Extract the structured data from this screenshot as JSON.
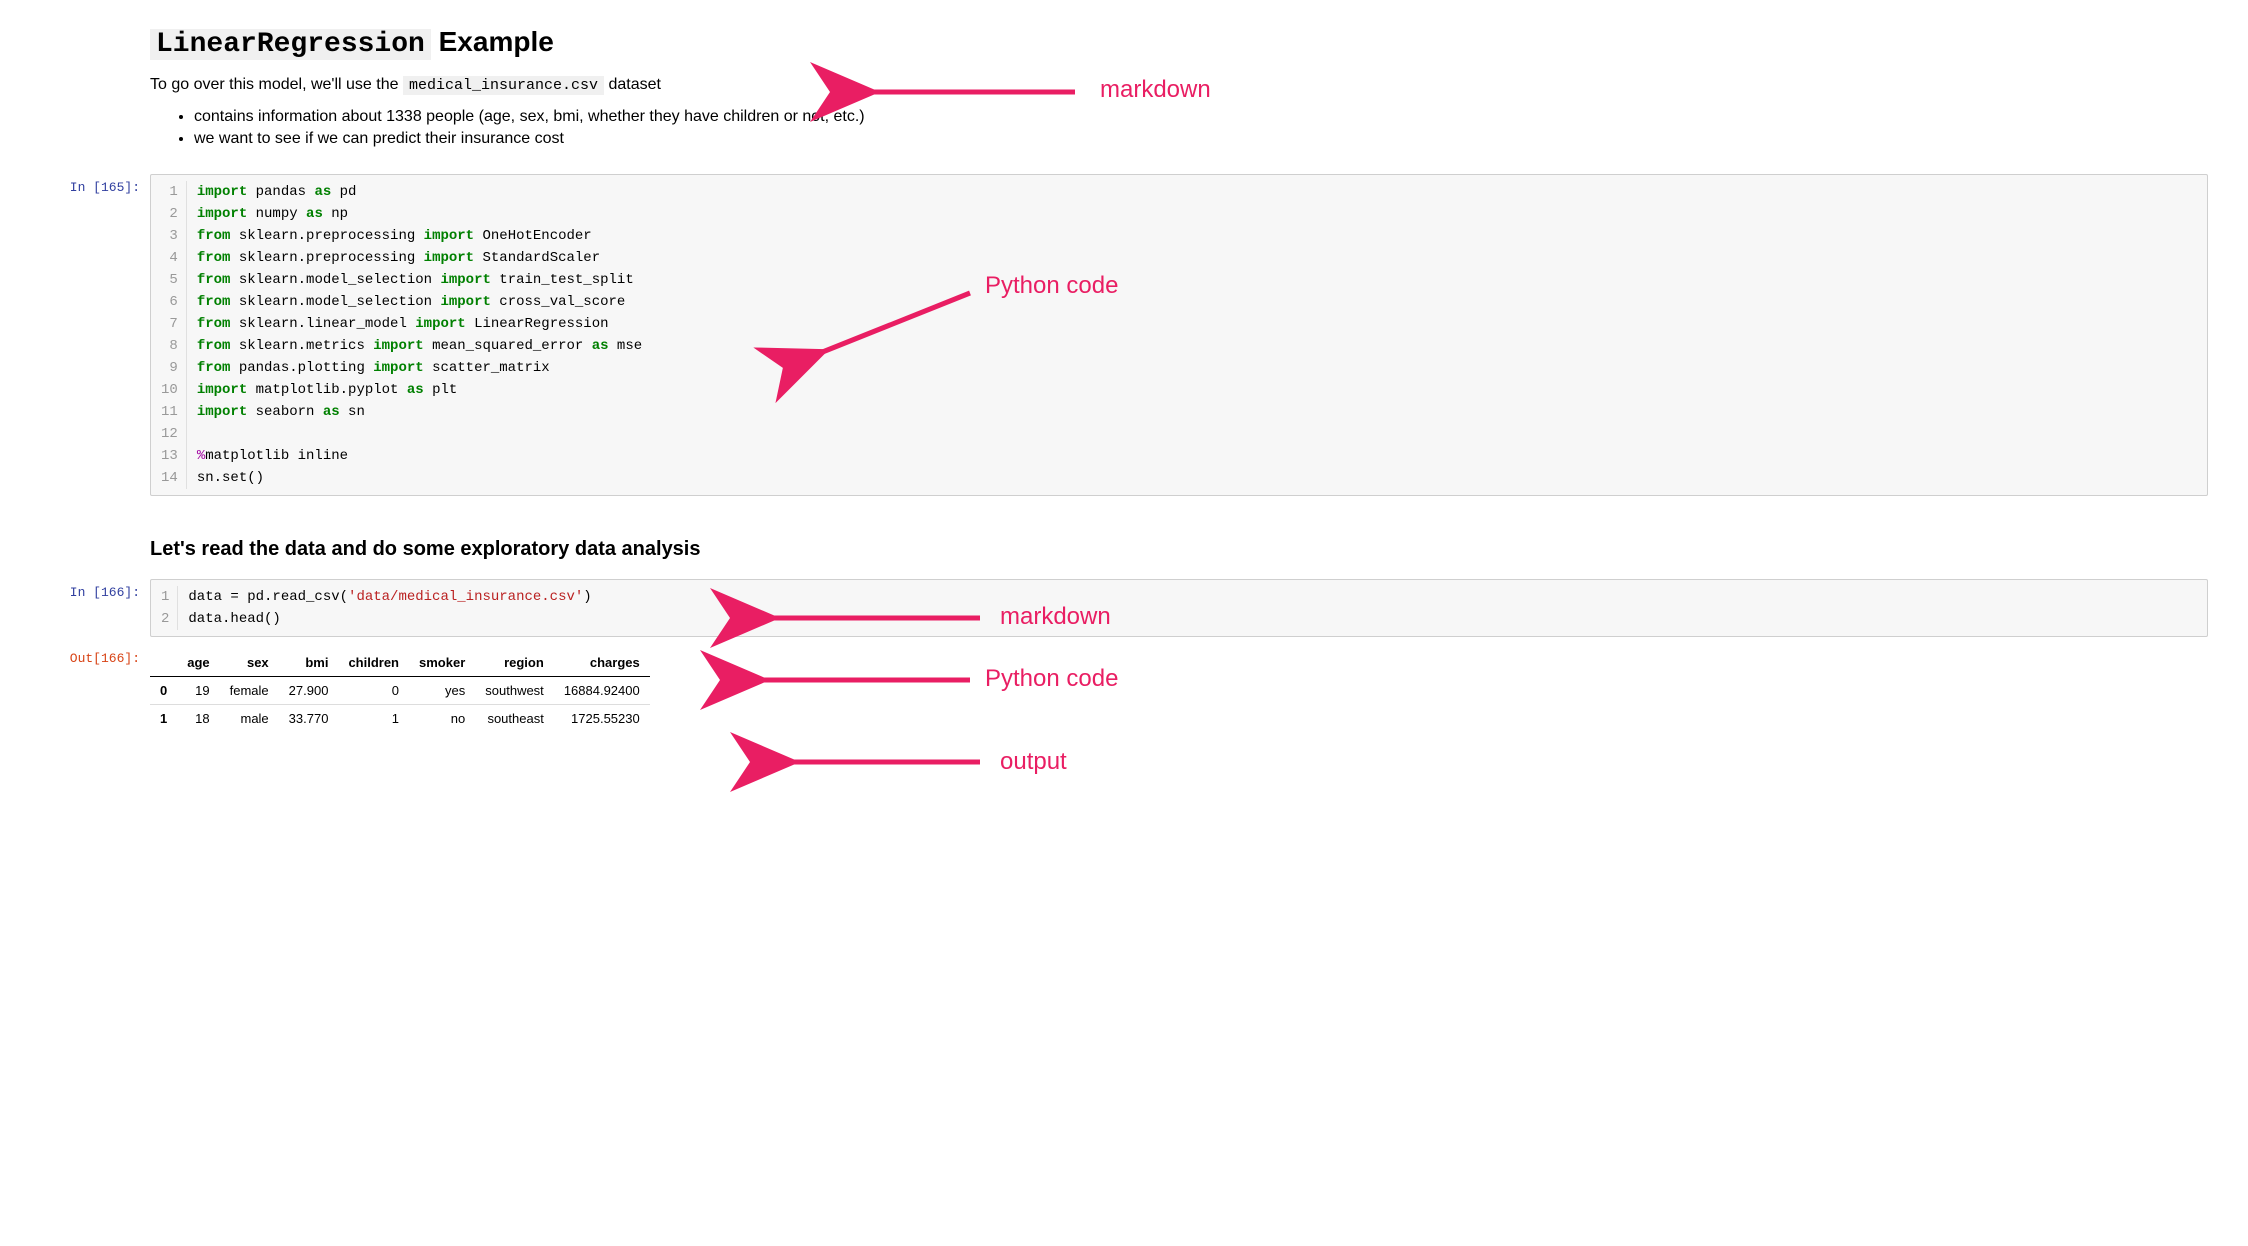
{
  "colors": {
    "keyword": "#008000",
    "magic": "#a000a0",
    "string": "#ba2121",
    "prompt_in": "#303f9f",
    "prompt_out": "#d84315",
    "code_bg": "#f7f7f7",
    "code_border": "#cfcfcf",
    "annotation": "#e91e63",
    "inline_code_bg": "#f0f0f0"
  },
  "markdown1": {
    "title_code": "LinearRegression",
    "title_rest": " Example",
    "intro_pre": "To go over this model, we'll use the ",
    "intro_code": "medical_insurance.csv",
    "intro_post": " dataset",
    "bullets": [
      "contains information about 1338 people (age, sex, bmi, whether they have children or not, etc.)",
      "we want to see if we can predict their insurance cost"
    ]
  },
  "code1": {
    "prompt": "In [165]:",
    "lines": [
      [
        {
          "t": "import ",
          "c": "kw"
        },
        {
          "t": "pandas "
        },
        {
          "t": "as",
          "c": "kw"
        },
        {
          "t": " pd"
        }
      ],
      [
        {
          "t": "import ",
          "c": "kw"
        },
        {
          "t": "numpy "
        },
        {
          "t": "as",
          "c": "kw"
        },
        {
          "t": " np"
        }
      ],
      [
        {
          "t": "from ",
          "c": "kw"
        },
        {
          "t": "sklearn.preprocessing "
        },
        {
          "t": "import",
          "c": "kw"
        },
        {
          "t": " OneHotEncoder"
        }
      ],
      [
        {
          "t": "from ",
          "c": "kw"
        },
        {
          "t": "sklearn.preprocessing "
        },
        {
          "t": "import",
          "c": "kw"
        },
        {
          "t": " StandardScaler"
        }
      ],
      [
        {
          "t": "from ",
          "c": "kw"
        },
        {
          "t": "sklearn.model_selection "
        },
        {
          "t": "import",
          "c": "kw"
        },
        {
          "t": " train_test_split"
        }
      ],
      [
        {
          "t": "from ",
          "c": "kw"
        },
        {
          "t": "sklearn.model_selection "
        },
        {
          "t": "import",
          "c": "kw"
        },
        {
          "t": " cross_val_score"
        }
      ],
      [
        {
          "t": "from ",
          "c": "kw"
        },
        {
          "t": "sklearn.linear_model "
        },
        {
          "t": "import",
          "c": "kw"
        },
        {
          "t": " LinearRegression"
        }
      ],
      [
        {
          "t": "from ",
          "c": "kw"
        },
        {
          "t": "sklearn.metrics "
        },
        {
          "t": "import",
          "c": "kw"
        },
        {
          "t": " mean_squared_error "
        },
        {
          "t": "as",
          "c": "kw"
        },
        {
          "t": " mse"
        }
      ],
      [
        {
          "t": "from ",
          "c": "kw"
        },
        {
          "t": "pandas.plotting "
        },
        {
          "t": "import",
          "c": "kw"
        },
        {
          "t": " scatter_matrix"
        }
      ],
      [
        {
          "t": "import ",
          "c": "kw"
        },
        {
          "t": "matplotlib.pyplot "
        },
        {
          "t": "as",
          "c": "kw"
        },
        {
          "t": " plt"
        }
      ],
      [
        {
          "t": "import ",
          "c": "kw"
        },
        {
          "t": "seaborn "
        },
        {
          "t": "as",
          "c": "kw"
        },
        {
          "t": " sn"
        }
      ],
      [
        {
          "t": ""
        }
      ],
      [
        {
          "t": "%",
          "c": "mag"
        },
        {
          "t": "matplotlib inline"
        }
      ],
      [
        {
          "t": "sn.set()"
        }
      ]
    ]
  },
  "markdown2": {
    "heading": "Let's read the data and do some exploratory data analysis"
  },
  "code2": {
    "prompt": "In [166]:",
    "lines": [
      [
        {
          "t": "data = pd.read_csv("
        },
        {
          "t": "'data/medical_insurance.csv'",
          "c": "str"
        },
        {
          "t": ")"
        }
      ],
      [
        {
          "t": "data.head()"
        }
      ]
    ]
  },
  "output1": {
    "prompt": "Out[166]:",
    "columns": [
      "age",
      "sex",
      "bmi",
      "children",
      "smoker",
      "region",
      "charges"
    ],
    "rows": [
      {
        "idx": "0",
        "cells": [
          "19",
          "female",
          "27.900",
          "0",
          "yes",
          "southwest",
          "16884.92400"
        ]
      },
      {
        "idx": "1",
        "cells": [
          "18",
          "male",
          "33.770",
          "1",
          "no",
          "southeast",
          "1725.55230"
        ]
      }
    ]
  },
  "annotations": {
    "a1": "markdown",
    "a2": "Python code",
    "a3": "markdown",
    "a4": "Python code",
    "a5": "output",
    "arrow_color": "#e91e63"
  }
}
